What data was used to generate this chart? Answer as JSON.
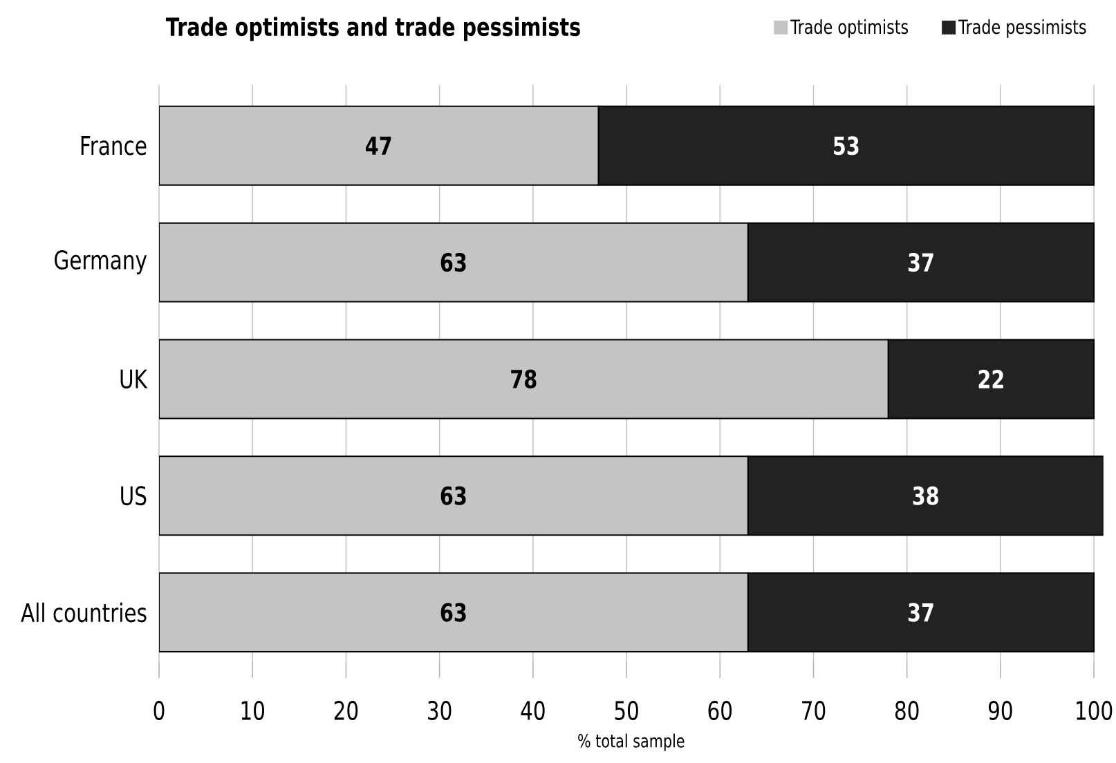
{
  "chart_data": {
    "type": "bar",
    "orientation": "horizontal",
    "stacked": true,
    "title": "Trade optimists and trade pessimists",
    "xlabel": "% total sample",
    "categories": [
      "France",
      "Germany",
      "UK",
      "US",
      "All countries"
    ],
    "series": [
      {
        "name": "Trade optimists",
        "color": "#c4c4c4",
        "values": [
          47,
          63,
          78,
          63,
          63
        ]
      },
      {
        "name": "Trade pessimists",
        "color": "#222222",
        "values": [
          53,
          37,
          22,
          38,
          37
        ]
      }
    ],
    "xlim": [
      0,
      101
    ],
    "xticks": [
      0,
      10,
      20,
      30,
      40,
      50,
      60,
      70,
      80,
      90,
      100
    ],
    "grid": "x",
    "legend": "top right",
    "data_labels": true
  }
}
